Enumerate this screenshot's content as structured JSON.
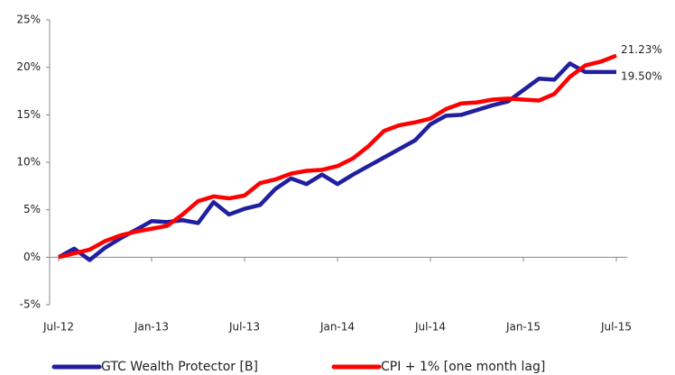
{
  "chart_data": {
    "type": "line",
    "categories": [
      "Jul-12",
      null,
      null,
      null,
      null,
      null,
      "Jan-13",
      null,
      null,
      null,
      null,
      null,
      "Jul-13",
      null,
      null,
      null,
      null,
      null,
      "Jan-14",
      null,
      null,
      null,
      null,
      null,
      "Jul-14",
      null,
      null,
      null,
      null,
      null,
      "Jan-15",
      null,
      null,
      null,
      null,
      null,
      "Jul-15"
    ],
    "series": [
      {
        "name": "GTC Wealth Protector [B]",
        "color": "#1f1fa0",
        "values": [
          0,
          0.9,
          -0.3,
          1.0,
          2.0,
          2.9,
          3.8,
          3.7,
          3.9,
          3.6,
          5.8,
          4.5,
          5.1,
          5.5,
          7.2,
          8.3,
          7.7,
          8.7,
          7.7,
          8.7,
          9.6,
          10.5,
          11.4,
          12.3,
          14.0,
          14.9,
          15.0,
          15.5,
          16.0,
          16.4,
          17.6,
          18.8,
          18.7,
          20.4,
          19.5,
          19.5,
          19.5
        ],
        "value_labels": [
          null,
          null,
          null,
          null,
          null,
          null,
          null,
          null,
          null,
          null,
          null,
          null,
          null,
          null,
          null,
          null,
          null,
          null,
          null,
          null,
          null,
          null,
          null,
          null,
          null,
          null,
          null,
          null,
          null,
          null,
          null,
          null,
          null,
          null,
          null,
          null,
          "19.50%"
        ]
      },
      {
        "name": "CPI + 1% [one month lag]",
        "color": "#ff0000",
        "values": [
          0,
          0.4,
          0.8,
          1.7,
          2.3,
          2.7,
          3.0,
          3.3,
          4.5,
          5.9,
          6.4,
          6.2,
          6.5,
          7.8,
          8.2,
          8.8,
          9.1,
          9.2,
          9.6,
          10.4,
          11.7,
          13.3,
          13.9,
          14.2,
          14.6,
          15.6,
          16.2,
          16.3,
          16.6,
          16.7,
          16.6,
          16.5,
          17.2,
          19.0,
          20.2,
          20.6,
          21.23
        ],
        "value_labels": [
          null,
          null,
          null,
          null,
          null,
          null,
          null,
          null,
          null,
          null,
          null,
          null,
          null,
          null,
          null,
          null,
          null,
          null,
          null,
          null,
          null,
          null,
          null,
          null,
          null,
          null,
          null,
          null,
          null,
          null,
          null,
          null,
          null,
          null,
          null,
          null,
          "21.23%"
        ]
      }
    ],
    "ylim": [
      -5,
      25
    ],
    "yticks": [
      {
        "value": -5,
        "label": "-5%"
      },
      {
        "value": 0,
        "label": "0%"
      },
      {
        "value": 5,
        "label": "5%"
      },
      {
        "value": 10,
        "label": "10%"
      },
      {
        "value": 15,
        "label": "15%"
      },
      {
        "value": 20,
        "label": "20%"
      },
      {
        "value": 25,
        "label": "25%"
      }
    ],
    "grid": false,
    "legend": "bottom"
  }
}
